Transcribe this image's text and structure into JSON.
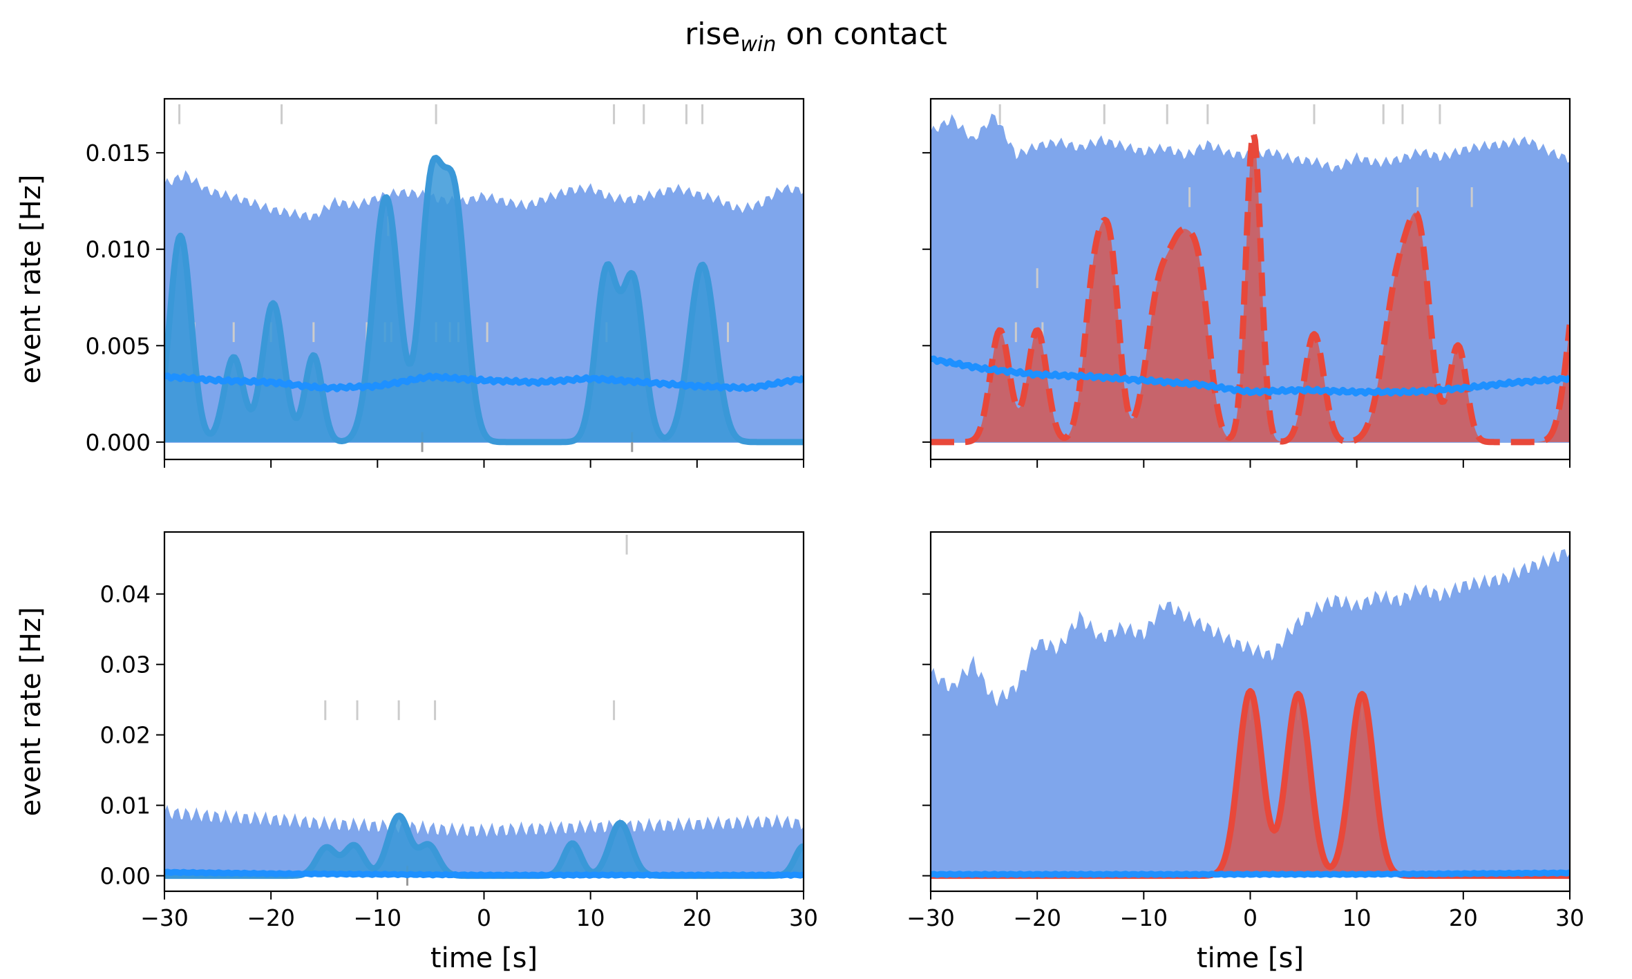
{
  "figure": {
    "title_main": "rise",
    "title_sub": "win",
    "title_rest": " on contact"
  },
  "colors": {
    "envelope": "#7fa6ec",
    "median": "#1e90ff",
    "blue_trace": "#3a98d8",
    "red_trace": "#e8483a",
    "red_fill": "#cf5d5d",
    "raster": "#cccccc",
    "raster_dark": "#999999"
  },
  "chart_data": [
    {
      "type": "area",
      "panel": "top-left",
      "xlabel": "",
      "ylabel": "event rate [Hz]",
      "xlim": [
        -30,
        30
      ],
      "ylim": [
        -0.0009,
        0.0178
      ],
      "xticks": [
        -30,
        -20,
        -10,
        0,
        10,
        20,
        30
      ],
      "xtick_labels_shown": false,
      "yticks": [
        0.0,
        0.005,
        0.01,
        0.015
      ],
      "ytick_labels": [
        "0.000",
        "0.005",
        "0.010",
        "0.015"
      ],
      "envelope_upper": {
        "x": [
          -30,
          -28,
          -26,
          -24,
          -22,
          -20,
          -18,
          -16,
          -14,
          -12,
          -10,
          -8,
          -6,
          -4,
          -2,
          0,
          2,
          4,
          6,
          8,
          10,
          12,
          14,
          16,
          18,
          20,
          22,
          24,
          26,
          28,
          30
        ],
        "y": [
          0.0133,
          0.0138,
          0.013,
          0.0127,
          0.0124,
          0.012,
          0.0118,
          0.0116,
          0.0124,
          0.0122,
          0.0126,
          0.0129,
          0.0128,
          0.0125,
          0.0124,
          0.0127,
          0.0124,
          0.0122,
          0.0126,
          0.013,
          0.0131,
          0.0126,
          0.0125,
          0.0128,
          0.0131,
          0.0128,
          0.0125,
          0.012,
          0.0123,
          0.0131,
          0.013
        ]
      },
      "envelope_lower": 0.0,
      "median": {
        "x": [
          -30,
          -25,
          -20,
          -15,
          -10,
          -5,
          0,
          5,
          10,
          15,
          20,
          25,
          30
        ],
        "y": [
          0.0034,
          0.0032,
          0.0031,
          0.0028,
          0.0029,
          0.0034,
          0.0032,
          0.0031,
          0.0033,
          0.0031,
          0.0029,
          0.0028,
          0.0033
        ]
      },
      "traces": [
        {
          "peaks": [
            [
              -28.5,
              0.0107,
              1.0
            ],
            [
              -23.5,
              0.0044,
              0.9
            ],
            [
              -19.8,
              0.0072,
              1.0
            ],
            [
              -16.0,
              0.0045,
              0.8
            ],
            [
              -9.2,
              0.0127,
              1.2
            ],
            [
              -5.0,
              0.0124,
              1.0
            ],
            [
              -2.8,
              0.0125,
              1.1
            ],
            [
              11.5,
              0.0088,
              1.0
            ],
            [
              14.0,
              0.0083,
              1.0
            ],
            [
              20.5,
              0.0092,
              1.2
            ]
          ],
          "mode": "filled",
          "color": "blue_trace"
        }
      ],
      "raster": [
        {
          "times": [
            -28.6,
            -19.0,
            -4.5,
            12.2,
            15.0,
            19.0,
            20.5
          ],
          "y": 0.017
        },
        {
          "times": [
            -9.0
          ],
          "y": 0.0112
        },
        {
          "times": [
            -27.2,
            -23.5,
            -20.0,
            -16.0,
            -11.0,
            -9.3,
            -8.7,
            -4.5,
            -3.2,
            -2.4,
            0.3,
            11.5,
            21.6,
            22.9
          ],
          "y": 0.0057
        },
        {
          "times": [
            -5.8,
            13.9
          ],
          "y": 0.0
        }
      ]
    },
    {
      "type": "area",
      "panel": "top-right",
      "xlabel": "",
      "ylabel": "",
      "xlim": [
        -30,
        30
      ],
      "ylim": [
        -0.0009,
        0.0178
      ],
      "xticks": [
        -30,
        -20,
        -10,
        0,
        10,
        20,
        30
      ],
      "xtick_labels_shown": false,
      "yticks": [
        0.0,
        0.005,
        0.01,
        0.015
      ],
      "ytick_labels_shown": false,
      "envelope_upper": {
        "x": [
          -30,
          -28,
          -26,
          -24,
          -22,
          -20,
          -18,
          -16,
          -14,
          -12,
          -10,
          -8,
          -6,
          -4,
          -2,
          0,
          2,
          4,
          6,
          8,
          10,
          12,
          14,
          16,
          18,
          20,
          22,
          24,
          26,
          28,
          30
        ],
        "y": [
          0.016,
          0.0167,
          0.0156,
          0.0169,
          0.0148,
          0.0153,
          0.0155,
          0.0152,
          0.0156,
          0.0153,
          0.015,
          0.0152,
          0.0148,
          0.0154,
          0.0149,
          0.0148,
          0.015,
          0.0146,
          0.0145,
          0.0141,
          0.0147,
          0.0144,
          0.0146,
          0.015,
          0.0147,
          0.0151,
          0.0153,
          0.0154,
          0.0156,
          0.015,
          0.0146
        ]
      },
      "envelope_lower": 0.0,
      "median": {
        "x": [
          -30,
          -25,
          -20,
          -15,
          -10,
          -5,
          0,
          5,
          10,
          15,
          20,
          25,
          30
        ],
        "y": [
          0.0043,
          0.0038,
          0.0035,
          0.0034,
          0.0032,
          0.003,
          0.0026,
          0.0027,
          0.0026,
          0.0026,
          0.0028,
          0.0031,
          0.0033
        ]
      },
      "traces": [
        {
          "peaks": [
            [
              -23.5,
              0.0058,
              0.9
            ],
            [
              -20.0,
              0.0058,
              0.9
            ],
            [
              -14.5,
              0.009,
              1.0
            ],
            [
              -13.0,
              0.0073,
              0.8
            ],
            [
              -8.5,
              0.0078,
              1.2
            ],
            [
              -6.5,
              0.0072,
              1.0
            ],
            [
              -4.8,
              0.0078,
              1.0
            ],
            [
              0.3,
              0.016,
              0.7
            ],
            [
              6.0,
              0.0056,
              0.9
            ],
            [
              14.0,
              0.0086,
              1.4
            ],
            [
              16.0,
              0.008,
              1.0
            ],
            [
              19.5,
              0.005,
              0.8
            ],
            [
              31.0,
              0.0092,
              1.1
            ]
          ],
          "mode": "filled",
          "dashed": true,
          "color": "red_trace"
        }
      ],
      "raster": [
        {
          "times": [
            -23.5,
            -13.7,
            -7.8,
            -4.0,
            6.0,
            12.5,
            14.3,
            17.8
          ],
          "y": 0.017
        },
        {
          "times": [
            -5.7,
            15.7,
            20.8
          ],
          "y": 0.0127
        },
        {
          "times": [
            -20.0
          ],
          "y": 0.0085
        },
        {
          "times": [
            -22.0,
            -19.5
          ],
          "y": 0.0057
        }
      ]
    },
    {
      "type": "area",
      "panel": "bottom-left",
      "xlabel": "time [s]",
      "ylabel": "event rate [Hz]",
      "xlim": [
        -30,
        30
      ],
      "ylim": [
        -0.0022,
        0.0488
      ],
      "xticks": [
        -30,
        -20,
        -10,
        0,
        10,
        20,
        30
      ],
      "xtick_labels": [
        "−30",
        "−20",
        "−10",
        "0",
        "10",
        "20",
        "30"
      ],
      "yticks": [
        0.0,
        0.01,
        0.02,
        0.03,
        0.04
      ],
      "ytick_labels": [
        "0.00",
        "0.01",
        "0.02",
        "0.03",
        "0.04"
      ],
      "envelope_upper": {
        "x": [
          -30,
          -27,
          -24,
          -21,
          -18,
          -15,
          -12,
          -9,
          -6,
          -3,
          0,
          3,
          6,
          9,
          12,
          15,
          18,
          21,
          24,
          27,
          30
        ],
        "y": [
          0.0088,
          0.0084,
          0.0081,
          0.0079,
          0.0076,
          0.0072,
          0.007,
          0.0068,
          0.0066,
          0.0063,
          0.0062,
          0.0064,
          0.0065,
          0.0067,
          0.0068,
          0.0069,
          0.007,
          0.0072,
          0.0073,
          0.0075,
          0.0072
        ]
      },
      "envelope_lower": 0.0,
      "median": {
        "x": [
          -30,
          -20,
          -10,
          0,
          10,
          20,
          30
        ],
        "y": [
          0.0005,
          0.0003,
          0.0002,
          0.0001,
          0.0001,
          0.0001,
          0.0001
        ]
      },
      "traces": [
        {
          "peaks": [
            [
              -14.8,
              0.004,
              0.9
            ],
            [
              -12.2,
              0.0043,
              0.9
            ],
            [
              -8.0,
              0.0085,
              1.0
            ],
            [
              -5.2,
              0.0043,
              0.9
            ],
            [
              8.3,
              0.0046,
              0.8
            ],
            [
              12.8,
              0.0075,
              1.0
            ],
            [
              30.0,
              0.0042,
              0.8
            ]
          ],
          "mode": "filled",
          "color": "blue_trace"
        }
      ],
      "raster": [
        {
          "times": [
            13.4
          ],
          "y": 0.047
        },
        {
          "times": [
            -14.9,
            -11.9,
            -8.0,
            -4.6,
            12.2
          ],
          "y": 0.0235
        },
        {
          "times": [
            -7.2
          ],
          "y": 0.0
        }
      ]
    },
    {
      "type": "area",
      "panel": "bottom-right",
      "xlabel": "time [s]",
      "ylabel": "",
      "xlim": [
        -30,
        30
      ],
      "ylim": [
        -0.0022,
        0.0488
      ],
      "xticks": [
        -30,
        -20,
        -10,
        0,
        10,
        20,
        30
      ],
      "xtick_labels": [
        "−30",
        "−20",
        "−10",
        "0",
        "10",
        "20",
        "30"
      ],
      "yticks": [
        0.0,
        0.01,
        0.02,
        0.03,
        0.04
      ],
      "ytick_labels_shown": false,
      "envelope_upper": {
        "x": [
          -30,
          -28,
          -26,
          -24,
          -22,
          -20,
          -18,
          -16,
          -14,
          -12,
          -10,
          -8,
          -6,
          -4,
          -2,
          0,
          2,
          4,
          6,
          8,
          10,
          12,
          14,
          16,
          18,
          20,
          22,
          24,
          26,
          28,
          30
        ],
        "y": [
          0.0285,
          0.0264,
          0.03,
          0.0245,
          0.0265,
          0.033,
          0.032,
          0.0365,
          0.0335,
          0.035,
          0.034,
          0.0385,
          0.0365,
          0.035,
          0.0332,
          0.032,
          0.031,
          0.035,
          0.0375,
          0.039,
          0.038,
          0.0395,
          0.0388,
          0.0405,
          0.0395,
          0.041,
          0.0415,
          0.042,
          0.0435,
          0.0445,
          0.046
        ]
      },
      "envelope_lower": 0.0,
      "median": {
        "x": [
          -30,
          -20,
          -10,
          0,
          10,
          20,
          30
        ],
        "y": [
          0.0002,
          0.0002,
          0.0002,
          0.0002,
          0.0002,
          0.0003,
          0.0004
        ]
      },
      "traces": [
        {
          "peaks": [
            [
              0.0,
              0.0262,
              1.1
            ],
            [
              4.5,
              0.0258,
              1.1
            ],
            [
              10.5,
              0.0258,
              1.1
            ]
          ],
          "mode": "filled",
          "color": "red_trace"
        }
      ],
      "raster": [
        {
          "times": [
            0.0,
            4.5,
            10.5
          ],
          "y": 0.0235
        }
      ]
    }
  ]
}
